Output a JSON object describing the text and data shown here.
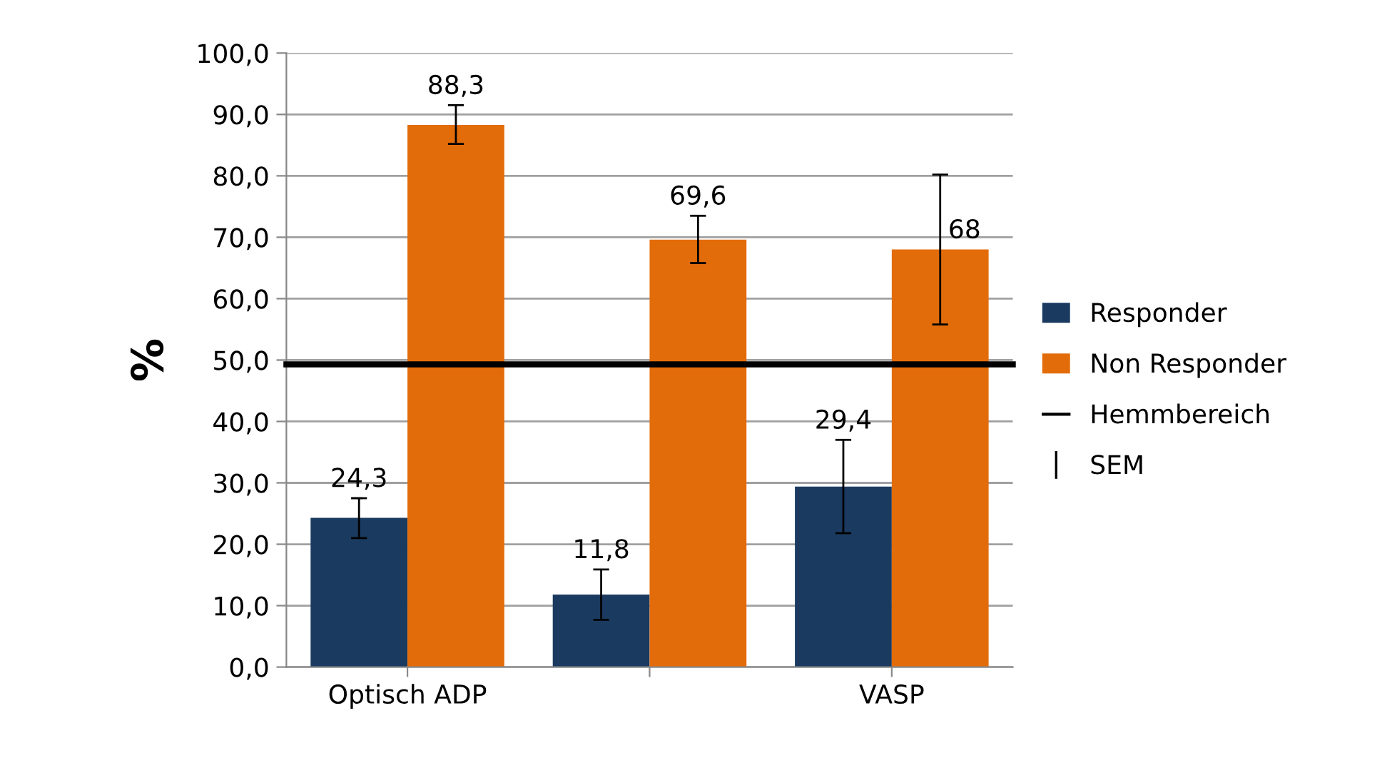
{
  "chart_data": {
    "type": "bar",
    "ylabel": "%",
    "categories": [
      "Optisch ADP",
      null,
      "VASP"
    ],
    "series": [
      {
        "name": "Responder",
        "color": "#1b3a60",
        "values": [
          24.3,
          11.8,
          29.4
        ],
        "errors": [
          [
            21.0,
            27.5
          ],
          [
            7.7,
            15.9
          ],
          [
            21.8,
            37.0
          ]
        ],
        "value_labels": [
          "24,3",
          "11,8",
          "29,4"
        ]
      },
      {
        "name": "Non Responder",
        "color": "#e36c0a",
        "values": [
          88.3,
          69.6,
          68
        ],
        "errors": [
          [
            85.2,
            91.5
          ],
          [
            65.8,
            73.5
          ],
          [
            55.8,
            80.2
          ]
        ],
        "value_labels": [
          "88,3",
          "69,6",
          "68"
        ]
      }
    ],
    "ref_lines": [
      {
        "axis": "y",
        "value": 49.3,
        "label": "Hemmbereich",
        "color": "#000000",
        "line_style": "solid"
      }
    ],
    "annotations": [
      "SEM"
    ],
    "ylim": [
      0,
      100
    ],
    "yticks": [
      {
        "value": 0,
        "label": "0,0"
      },
      {
        "value": 10,
        "label": "10,0"
      },
      {
        "value": 20,
        "label": "20,0"
      },
      {
        "value": 30,
        "label": "30,0"
      },
      {
        "value": 40,
        "label": "40,0"
      },
      {
        "value": 50,
        "label": "50,0"
      },
      {
        "value": 60,
        "label": "60,0"
      },
      {
        "value": 70,
        "label": "70,0"
      },
      {
        "value": 80,
        "label": "80,0"
      },
      {
        "value": 90,
        "label": "90,0"
      },
      {
        "value": 100,
        "label": "100,0"
      }
    ],
    "grid": "y",
    "legend": "right"
  }
}
